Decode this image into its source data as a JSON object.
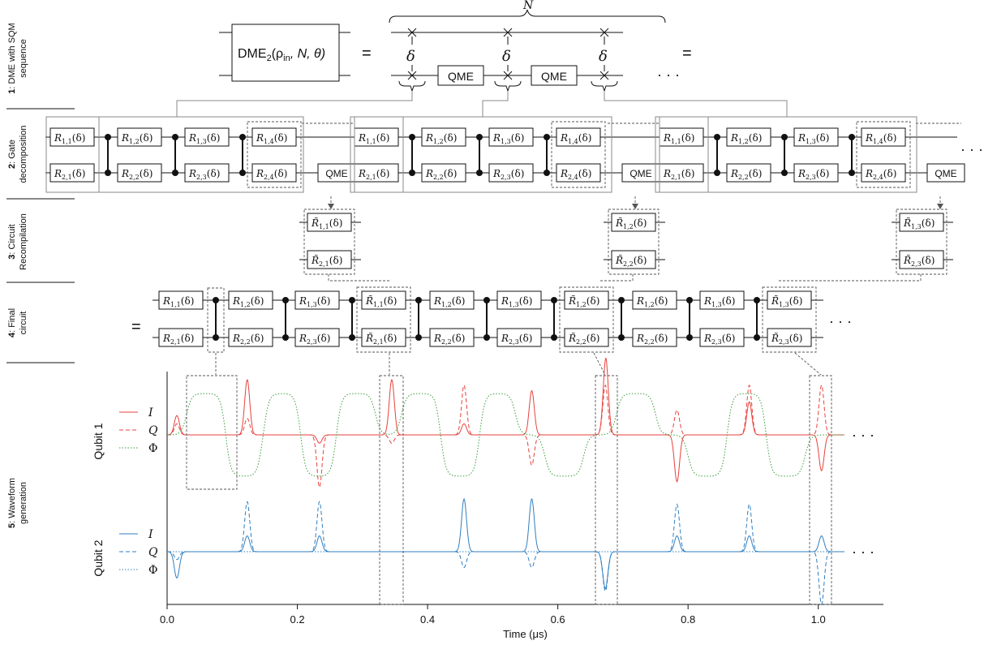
{
  "colors": {
    "I": "#e8413c",
    "Q": "#e8413c",
    "phi": "#3b9e3b",
    "q2": "#2f7fc1"
  },
  "rows": [
    {
      "num": "1",
      "label1": ": DME with SQM",
      "label2": "sequence"
    },
    {
      "num": "2",
      "label1": ": Gate",
      "label2": "decomposition"
    },
    {
      "num": "3",
      "label1": ": Circuit",
      "label2": "Recompilation"
    },
    {
      "num": "4",
      "label1": ": Final",
      "label2": "circuit"
    },
    {
      "num": "5",
      "label1": ": Waveform",
      "label2": "generation"
    }
  ],
  "row1": {
    "dme_box": "DME",
    "dme_sub": "2",
    "dme_args": "(ρ",
    "dme_args_sub": "in",
    "dme_args_rest": ", N, θ)",
    "eq": "=",
    "N": "N",
    "delta": "δ",
    "qme": "QME",
    "ellipsis": "· · ·",
    "eq2": "="
  },
  "gates": {
    "R": "R",
    "Rt": "R̃",
    "arg": "(δ)",
    "qme": "QME",
    "ellipsis": "· · ·",
    "eq": "=",
    "row2_top": [
      "1,1",
      "1,2",
      "1,3",
      "1,4"
    ],
    "row2_bot": [
      "2,1",
      "2,2",
      "2,3",
      "2,4"
    ],
    "row3": [
      [
        "1,1",
        "2,1"
      ],
      [
        "1,2",
        "2,2"
      ],
      [
        "1,3",
        "2,3"
      ]
    ],
    "row4_plain_top": [
      "1,1",
      "1,2",
      "1,3",
      "1,2",
      "1,3",
      "1,2",
      "1,3"
    ],
    "row4_plain_bot": [
      "2,1",
      "2,2",
      "2,3",
      "2,2",
      "2,3",
      "2,2",
      "2,3"
    ]
  },
  "chart_data": {
    "type": "line",
    "xlabel": "Time (μs)",
    "xlim": [
      0.0,
      1.1
    ],
    "xticks": [
      "0.0",
      "0.2",
      "0.4",
      "0.6",
      "0.8",
      "1.0"
    ],
    "panels": [
      {
        "name": "Qubit 1",
        "series": [
          {
            "name": "I",
            "style": "solid",
            "pulses": [
              [
                0.015,
                0.35
              ],
              [
                0.123,
                1.0
              ],
              [
                0.234,
                -0.15
              ],
              [
                0.345,
                1.0
              ],
              [
                0.456,
                0.2
              ],
              [
                0.56,
                0.8
              ],
              [
                0.673,
                0.5
              ],
              [
                0.674,
                0.9
              ],
              [
                0.783,
                -0.85
              ],
              [
                0.894,
                0.6
              ],
              [
                1.005,
                -0.65
              ]
            ]
          },
          {
            "name": "Q",
            "style": "dashed",
            "pulses": [
              [
                0.015,
                0.2
              ],
              [
                0.123,
                0.3
              ],
              [
                0.234,
                -0.95
              ],
              [
                0.345,
                -0.15
              ],
              [
                0.456,
                0.9
              ],
              [
                0.56,
                -0.55
              ],
              [
                0.673,
                0.9
              ],
              [
                0.783,
                0.45
              ],
              [
                0.894,
                0.9
              ],
              [
                1.005,
                0.9
              ]
            ]
          },
          {
            "name": "Φ",
            "style": "dotted",
            "plateaus": [
              [
                0.03,
                0.09,
                0.75
              ],
              [
                0.09,
                0.15,
                -0.75
              ],
              [
                0.145,
                0.205,
                0.75
              ],
              [
                0.205,
                0.26,
                -0.75
              ],
              [
                0.26,
                0.32,
                0.75
              ],
              [
                0.36,
                0.42,
                0.75
              ],
              [
                0.42,
                0.48,
                -0.75
              ],
              [
                0.48,
                0.535,
                0.75
              ],
              [
                0.58,
                0.64,
                -0.75
              ],
              [
                0.69,
                0.75,
                0.75
              ],
              [
                0.8,
                0.86,
                -0.75
              ],
              [
                0.86,
                0.92,
                0.75
              ],
              [
                0.92,
                0.98,
                -0.75
              ]
            ]
          }
        ]
      },
      {
        "name": "Qubit 2",
        "series": [
          {
            "name": "I",
            "style": "solid",
            "pulses": [
              [
                0.015,
                -0.5
              ],
              [
                0.123,
                0.3
              ],
              [
                0.234,
                0.3
              ],
              [
                0.456,
                1.0
              ],
              [
                0.56,
                1.0
              ],
              [
                0.673,
                -0.7
              ],
              [
                0.783,
                0.3
              ],
              [
                0.894,
                0.3
              ],
              [
                1.005,
                0.3
              ]
            ]
          },
          {
            "name": "Q",
            "style": "dashed",
            "pulses": [
              [
                0.015,
                -0.15
              ],
              [
                0.123,
                0.95
              ],
              [
                0.234,
                0.95
              ],
              [
                0.456,
                -0.3
              ],
              [
                0.56,
                -0.3
              ],
              [
                0.673,
                -0.75
              ],
              [
                0.783,
                0.9
              ],
              [
                0.894,
                0.9
              ],
              [
                1.005,
                -1.0
              ]
            ]
          },
          {
            "name": "Φ",
            "style": "dotted",
            "pulses": []
          }
        ]
      }
    ]
  }
}
